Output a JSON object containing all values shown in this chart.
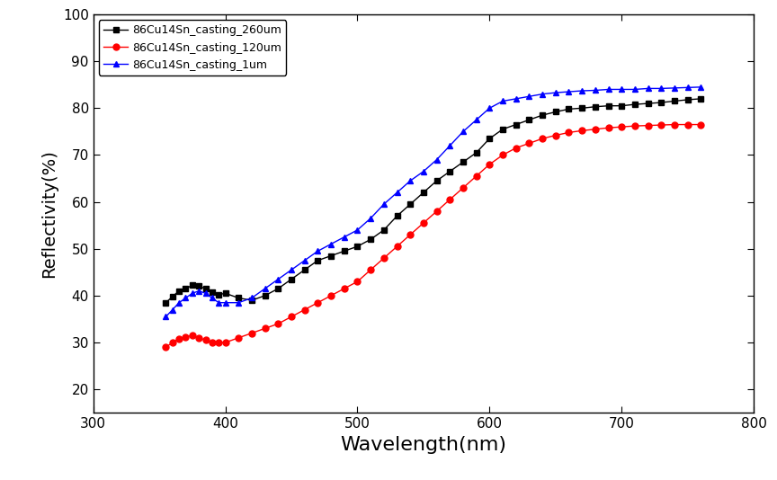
{
  "title": "",
  "xlabel": "Wavelength(nm)",
  "ylabel": "Reflectivity(%)",
  "xlim": [
    300,
    800
  ],
  "ylim": [
    15,
    100
  ],
  "xticks": [
    300,
    400,
    500,
    600,
    700,
    800
  ],
  "yticks": [
    20,
    30,
    40,
    50,
    60,
    70,
    80,
    90,
    100
  ],
  "series": [
    {
      "label": "86Cu14Sn_casting_260um",
      "color": "black",
      "marker": "s",
      "x": [
        355,
        360,
        365,
        370,
        375,
        380,
        385,
        390,
        395,
        400,
        410,
        420,
        430,
        440,
        450,
        460,
        470,
        480,
        490,
        500,
        510,
        520,
        530,
        540,
        550,
        560,
        570,
        580,
        590,
        600,
        610,
        620,
        630,
        640,
        650,
        660,
        670,
        680,
        690,
        700,
        710,
        720,
        730,
        740,
        750,
        760
      ],
      "y": [
        38.5,
        39.8,
        41.0,
        41.5,
        42.2,
        42.0,
        41.5,
        40.8,
        40.2,
        40.5,
        39.5,
        39.0,
        40.0,
        41.5,
        43.5,
        45.5,
        47.5,
        48.5,
        49.5,
        50.5,
        52.0,
        54.0,
        57.0,
        59.5,
        62.0,
        64.5,
        66.5,
        68.5,
        70.5,
        73.5,
        75.5,
        76.5,
        77.5,
        78.5,
        79.2,
        79.8,
        80.0,
        80.3,
        80.5,
        80.5,
        80.8,
        81.0,
        81.2,
        81.5,
        81.8,
        82.0
      ]
    },
    {
      "label": "86Cu14Sn_casting_120um",
      "color": "red",
      "marker": "o",
      "x": [
        355,
        360,
        365,
        370,
        375,
        380,
        385,
        390,
        395,
        400,
        410,
        420,
        430,
        440,
        450,
        460,
        470,
        480,
        490,
        500,
        510,
        520,
        530,
        540,
        550,
        560,
        570,
        580,
        590,
        600,
        610,
        620,
        630,
        640,
        650,
        660,
        670,
        680,
        690,
        700,
        710,
        720,
        730,
        740,
        750,
        760
      ],
      "y": [
        29.0,
        30.0,
        30.8,
        31.2,
        31.5,
        31.0,
        30.5,
        30.0,
        30.0,
        30.0,
        31.0,
        32.0,
        33.0,
        34.0,
        35.5,
        37.0,
        38.5,
        40.0,
        41.5,
        43.0,
        45.5,
        48.0,
        50.5,
        53.0,
        55.5,
        58.0,
        60.5,
        63.0,
        65.5,
        68.0,
        70.0,
        71.5,
        72.5,
        73.5,
        74.2,
        74.8,
        75.2,
        75.5,
        75.8,
        76.0,
        76.2,
        76.3,
        76.4,
        76.5,
        76.5,
        76.5
      ]
    },
    {
      "label": "86Cu14Sn_casting_1um",
      "color": "blue",
      "marker": "^",
      "x": [
        355,
        360,
        365,
        370,
        375,
        380,
        385,
        390,
        395,
        400,
        410,
        420,
        430,
        440,
        450,
        460,
        470,
        480,
        490,
        500,
        510,
        520,
        530,
        540,
        550,
        560,
        570,
        580,
        590,
        600,
        610,
        620,
        630,
        640,
        650,
        660,
        670,
        680,
        690,
        700,
        710,
        720,
        730,
        740,
        750,
        760
      ],
      "y": [
        35.5,
        37.0,
        38.5,
        39.5,
        40.5,
        41.0,
        40.5,
        39.5,
        38.5,
        38.5,
        38.5,
        39.5,
        41.5,
        43.5,
        45.5,
        47.5,
        49.5,
        51.0,
        52.5,
        54.0,
        56.5,
        59.5,
        62.0,
        64.5,
        66.5,
        69.0,
        72.0,
        75.0,
        77.5,
        80.0,
        81.5,
        82.0,
        82.5,
        83.0,
        83.3,
        83.5,
        83.7,
        83.8,
        84.0,
        84.0,
        84.0,
        84.2,
        84.2,
        84.3,
        84.4,
        84.5
      ]
    }
  ],
  "legend_loc": "upper left",
  "figsize": [
    8.64,
    5.34
  ],
  "dpi": 100,
  "markersize": 5,
  "linewidth": 1.0
}
